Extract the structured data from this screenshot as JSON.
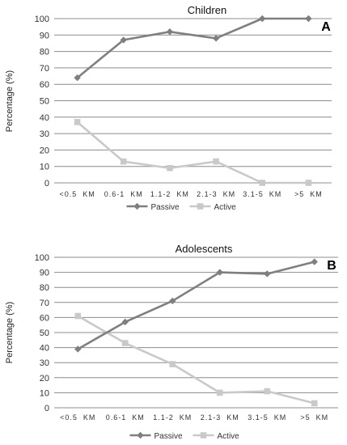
{
  "chart_data": [
    {
      "type": "line",
      "title": "Children",
      "panel_label": "A",
      "ylabel": "Percentage (%)",
      "xlabel": "",
      "ylim": [
        0,
        100
      ],
      "yticks": [
        0,
        10,
        20,
        30,
        40,
        50,
        60,
        70,
        80,
        90,
        100
      ],
      "grid": true,
      "legend": "bottom",
      "categories": [
        "<0.5  KM",
        "0.6-1  KM",
        "1.1-2  KM",
        "2.1-3  KM",
        "3.1-5  KM",
        ">5  KM"
      ],
      "series": [
        {
          "name": "Passive",
          "color": "#7f7f7f",
          "marker": "diamond",
          "values": [
            64,
            87,
            92,
            88,
            100,
            100
          ]
        },
        {
          "name": "Active",
          "color": "#c9c9c9",
          "marker": "square",
          "values": [
            37,
            13,
            9,
            13,
            0,
            0
          ]
        }
      ]
    },
    {
      "type": "line",
      "title": "Adolescents",
      "panel_label": "B",
      "ylabel": "Percentage (%)",
      "xlabel": "",
      "ylim": [
        0,
        100
      ],
      "yticks": [
        0,
        10,
        20,
        30,
        40,
        50,
        60,
        70,
        80,
        90,
        100
      ],
      "grid": true,
      "legend": "bottom",
      "categories": [
        "<0.5  KM",
        "0.6-1  KM",
        "1.1-2  KM",
        "2.1-3  KM",
        "3.1-5  KM",
        ">5  KM"
      ],
      "series": [
        {
          "name": "Passive",
          "color": "#7f7f7f",
          "marker": "diamond",
          "values": [
            39,
            57,
            71,
            90,
            89,
            97
          ]
        },
        {
          "name": "Active",
          "color": "#c9c9c9",
          "marker": "square",
          "values": [
            61,
            43,
            29,
            10,
            11,
            3
          ]
        }
      ]
    }
  ]
}
